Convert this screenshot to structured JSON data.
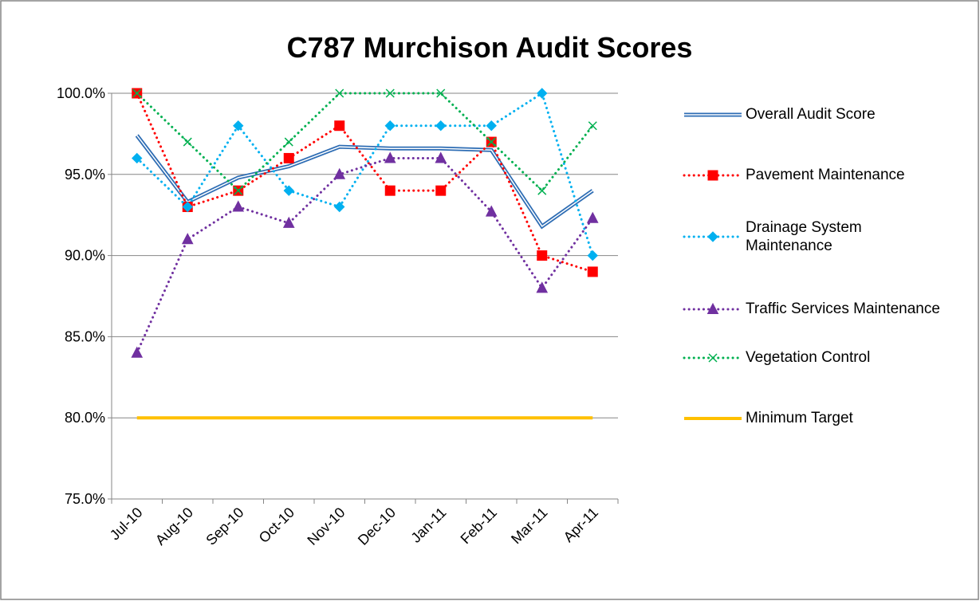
{
  "chart_data": {
    "type": "line",
    "title": "C787 Murchison Audit Scores",
    "categories": [
      "Jul-10",
      "Aug-10",
      "Sep-10",
      "Oct-10",
      "Nov-10",
      "Dec-10",
      "Jan-11",
      "Feb-11",
      "Mar-11",
      "Apr-11"
    ],
    "ylim": [
      75,
      100
    ],
    "yticks": [
      {
        "value": 75,
        "label": "75.0%"
      },
      {
        "value": 80,
        "label": "80.0%"
      },
      {
        "value": 85,
        "label": "85.0%"
      },
      {
        "value": 90,
        "label": "90.0%"
      },
      {
        "value": 95,
        "label": "95.0%"
      },
      {
        "value": 100,
        "label": "100.0%"
      }
    ],
    "grid": true,
    "legend": "right",
    "series": [
      {
        "name": "Overall Audit Score",
        "color": "#2e6db4",
        "style": "double",
        "marker": "none",
        "values": [
          97.4,
          93.3,
          94.8,
          95.5,
          96.7,
          96.6,
          96.6,
          96.5,
          91.8,
          94.0
        ]
      },
      {
        "name": "Pavement Maintenance",
        "color": "#ff0000",
        "style": "dotted",
        "marker": "square",
        "values": [
          100,
          93,
          94,
          96,
          98,
          94,
          94,
          97,
          90,
          89
        ]
      },
      {
        "name": "Drainage System Maintenance",
        "color": "#00b0f0",
        "style": "dotted",
        "marker": "diamond",
        "values": [
          96,
          93,
          98,
          94,
          93,
          98,
          98,
          98,
          100,
          90
        ]
      },
      {
        "name": "Traffic Services Maintenance",
        "color": "#7030a0",
        "style": "dotted",
        "marker": "triangle",
        "values": [
          84,
          91,
          93,
          92,
          95,
          96,
          96,
          92.7,
          88,
          92.3
        ]
      },
      {
        "name": "Vegetation Control",
        "color": "#00b050",
        "style": "dotted",
        "marker": "x",
        "values": [
          100,
          97,
          94,
          97,
          100,
          100,
          100,
          97,
          94,
          98
        ]
      },
      {
        "name": "Minimum Target",
        "color": "#ffc000",
        "style": "solid",
        "marker": "none",
        "values": [
          80,
          80,
          80,
          80,
          80,
          80,
          80,
          80,
          80,
          80
        ]
      }
    ]
  }
}
